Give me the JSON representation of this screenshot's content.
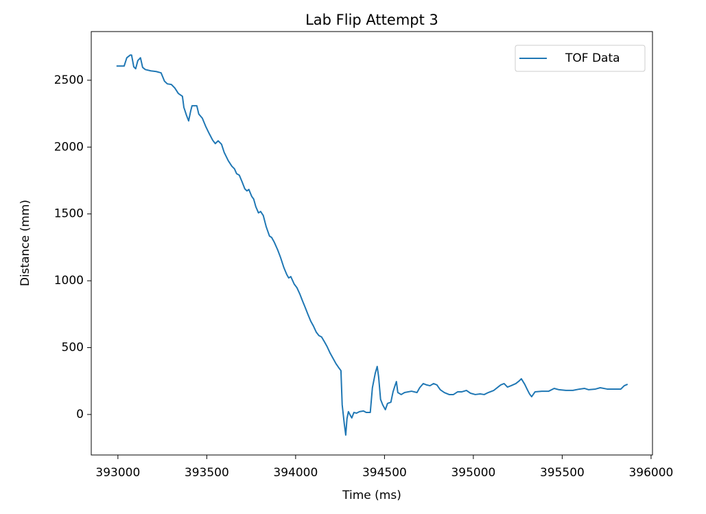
{
  "chart_data": {
    "type": "line",
    "title": "Lab Flip Attempt 3",
    "xlabel": "Time (ms)",
    "ylabel": "Distance (mm)",
    "x": [
      392992,
      393035,
      393050,
      393069,
      393077,
      393089,
      393100,
      393112,
      393127,
      393139,
      393154,
      393185,
      393216,
      393243,
      393262,
      393278,
      393301,
      393320,
      393340,
      393363,
      393371,
      393386,
      393398,
      393409,
      393417,
      393444,
      393455,
      393475,
      393494,
      393513,
      393533,
      393548,
      393564,
      393583,
      393598,
      393621,
      393641,
      393656,
      393668,
      393683,
      393699,
      393714,
      393726,
      393737,
      393753,
      393764,
      393776,
      393791,
      393803,
      393818,
      393834,
      393853,
      393865,
      393880,
      393899,
      393915,
      393934,
      393950,
      393961,
      393973,
      393992,
      394007,
      394023,
      394038,
      394054,
      394069,
      394085,
      394100,
      394116,
      394131,
      394146,
      394162,
      394177,
      394193,
      394208,
      394227,
      394243,
      394255,
      394262,
      394274,
      394282,
      394289,
      394297,
      394309,
      394316,
      394328,
      394343,
      394359,
      394382,
      394397,
      394420,
      394432,
      394448,
      394459,
      394467,
      394478,
      394490,
      394505,
      394517,
      394536,
      394548,
      394559,
      394567,
      394575,
      394594,
      394613,
      394652,
      394683,
      394698,
      394718,
      394737,
      394756,
      394776,
      394795,
      394814,
      394837,
      394864,
      394888,
      394911,
      394934,
      394961,
      394984,
      395011,
      395038,
      395061,
      395084,
      395115,
      395154,
      395173,
      395192,
      395212,
      395239,
      395258,
      395270,
      395289,
      395304,
      395316,
      395328,
      395347,
      395385,
      395424,
      395455,
      395482,
      395521,
      395560,
      395598,
      395625,
      395649,
      395687,
      395714,
      395753,
      395811,
      395830,
      395849,
      395868
    ],
    "series": [
      {
        "name": "TOF Data",
        "color": "#1f77b4",
        "values": [
          2606,
          2606,
          2668,
          2688,
          2688,
          2601,
          2586,
          2647,
          2668,
          2596,
          2580,
          2570,
          2565,
          2555,
          2493,
          2473,
          2468,
          2442,
          2401,
          2380,
          2298,
          2237,
          2196,
          2267,
          2309,
          2309,
          2247,
          2216,
          2155,
          2103,
          2052,
          2026,
          2047,
          2021,
          1960,
          1898,
          1857,
          1837,
          1801,
          1790,
          1739,
          1688,
          1672,
          1683,
          1631,
          1611,
          1554,
          1508,
          1518,
          1488,
          1406,
          1334,
          1324,
          1288,
          1231,
          1175,
          1098,
          1047,
          1021,
          1031,
          975,
          949,
          903,
          852,
          800,
          749,
          698,
          662,
          616,
          590,
          580,
          544,
          508,
          462,
          426,
          380,
          349,
          328,
          72,
          -72,
          -154,
          -31,
          21,
          -10,
          -26,
          15,
          10,
          21,
          26,
          15,
          15,
          200,
          308,
          359,
          282,
          113,
          72,
          36,
          82,
          92,
          169,
          215,
          246,
          164,
          149,
          164,
          174,
          164,
          200,
          231,
          221,
          215,
          231,
          221,
          185,
          164,
          149,
          149,
          169,
          169,
          180,
          159,
          149,
          154,
          149,
          164,
          180,
          221,
          231,
          205,
          215,
          231,
          251,
          267,
          226,
          185,
          154,
          133,
          169,
          174,
          174,
          195,
          185,
          180,
          180,
          190,
          195,
          185,
          190,
          200,
          190,
          190,
          190,
          215,
          226
        ]
      }
    ],
    "xlim": [
      392850,
      396008
    ],
    "ylim": [
      -303,
      2864
    ],
    "xticks": [
      393000,
      393500,
      394000,
      394500,
      395000,
      395500,
      396000
    ],
    "yticks": [
      0,
      500,
      1000,
      1500,
      2000,
      2500
    ],
    "legend": "upper right",
    "grid": false
  }
}
